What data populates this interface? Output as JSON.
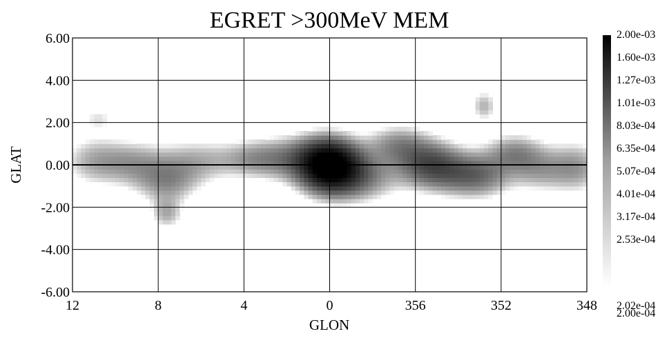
{
  "chart_data": {
    "type": "heatmap",
    "title": "EGRET >300MeV MEM",
    "xlabel": "GLON",
    "ylabel": "GLAT",
    "colormap": "grayscale (white = low, black = high)",
    "xlim": [
      12,
      -12
    ],
    "ylim": [
      -6.0,
      6.0
    ],
    "x_ticks": [
      "12",
      "8",
      "4",
      "0",
      "356",
      "352",
      "348"
    ],
    "x_tick_values": [
      12,
      8,
      4,
      0,
      -4,
      -8,
      -12
    ],
    "y_ticks": [
      "6.00",
      "4.00",
      "2.00",
      "0.00",
      "-2.00",
      "-4.00",
      "-6.00"
    ],
    "y_tick_values": [
      6,
      4,
      2,
      0,
      -2,
      -4,
      -6
    ],
    "grid": true,
    "colorbar": {
      "placement": "right",
      "min": 0.0002,
      "max": 0.002,
      "labels": [
        "2.00e-03",
        "1.60e-03",
        "1.27e-03",
        "1.01e-03",
        "8.03e-04",
        "6.35e-04",
        "5.07e-04",
        "4.01e-04",
        "3.17e-04",
        "2.53e-04",
        "2.02e-04",
        "2.00e-04"
      ]
    },
    "sources": [
      {
        "glon": 0.0,
        "glat": 0.0,
        "sigma_l": 0.9,
        "sigma_b": 0.8,
        "intensity": 0.002
      },
      {
        "glon": -1.2,
        "glat": -0.5,
        "sigma_l": 1.3,
        "sigma_b": 0.8,
        "intensity": 0.0007
      },
      {
        "glon": 1.5,
        "glat": 0.3,
        "sigma_l": 1.2,
        "sigma_b": 0.7,
        "intensity": 0.0006
      },
      {
        "glon": -3.2,
        "glat": 1.0,
        "sigma_l": 1.0,
        "sigma_b": 0.6,
        "intensity": 0.0005
      },
      {
        "glon": -4.6,
        "glat": 0.1,
        "sigma_l": 1.0,
        "sigma_b": 0.7,
        "intensity": 0.0008
      },
      {
        "glon": -5.8,
        "glat": -0.4,
        "sigma_l": 1.2,
        "sigma_b": 0.7,
        "intensity": 0.0005
      },
      {
        "glon": -7.1,
        "glat": -0.5,
        "sigma_l": 1.0,
        "sigma_b": 0.7,
        "intensity": 0.0005
      },
      {
        "glon": -7.2,
        "glat": 2.8,
        "sigma_l": 0.4,
        "sigma_b": 0.5,
        "intensity": 0.0004
      },
      {
        "glon": -8.6,
        "glat": 0.6,
        "sigma_l": 0.9,
        "sigma_b": 0.6,
        "intensity": 0.0005
      },
      {
        "glon": -9.7,
        "glat": -0.2,
        "sigma_l": 0.9,
        "sigma_b": 0.7,
        "intensity": 0.0004
      },
      {
        "glon": -11.5,
        "glat": -0.1,
        "sigma_l": 0.9,
        "sigma_b": 0.8,
        "intensity": 0.0005
      },
      {
        "glon": 3.5,
        "glat": 0.3,
        "sigma_l": 1.0,
        "sigma_b": 0.6,
        "intensity": 0.0004
      },
      {
        "glon": 6.2,
        "glat": 0.2,
        "sigma_l": 1.4,
        "sigma_b": 0.7,
        "intensity": 0.0004
      },
      {
        "glon": 7.6,
        "glat": -0.8,
        "sigma_l": 1.0,
        "sigma_b": 0.7,
        "intensity": 0.0005
      },
      {
        "glon": 7.6,
        "glat": -2.3,
        "sigma_l": 0.5,
        "sigma_b": 0.5,
        "intensity": 0.0004
      },
      {
        "glon": 9.2,
        "glat": 0.1,
        "sigma_l": 1.0,
        "sigma_b": 0.7,
        "intensity": 0.0004
      },
      {
        "glon": 11.0,
        "glat": 0.2,
        "sigma_l": 1.0,
        "sigma_b": 0.8,
        "intensity": 0.0004
      },
      {
        "glon": 10.8,
        "glat": 2.2,
        "sigma_l": 0.6,
        "sigma_b": 0.4,
        "intensity": 0.00025
      }
    ]
  }
}
